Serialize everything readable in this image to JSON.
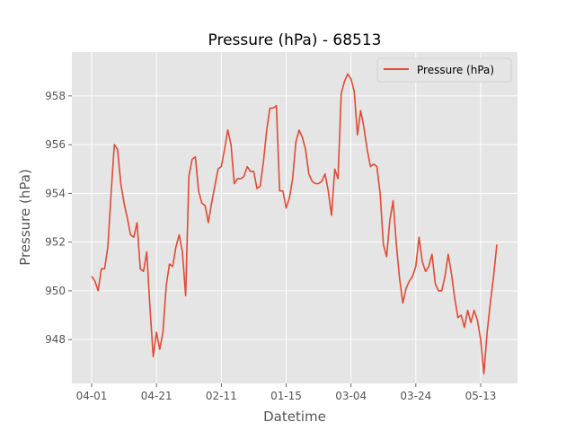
{
  "chart_data": {
    "type": "line",
    "title": "Pressure (hPa) - 68513",
    "xlabel": "Datetime",
    "ylabel": "Pressure (hPa)",
    "x_tick_labels": [
      "04-01",
      "04-21",
      "02-11",
      "01-15",
      "03-04",
      "03-24",
      "05-13"
    ],
    "y_ticks": [
      948,
      950,
      952,
      954,
      956,
      958
    ],
    "ylim": [
      946.2,
      959.8
    ],
    "grid": true,
    "legend_position": "upper right",
    "series": [
      {
        "name": "Pressure (hPa)",
        "color": "#E24A33",
        "values": [
          950.6,
          950.4,
          950.0,
          950.9,
          950.9,
          951.8,
          954.0,
          956.0,
          955.8,
          954.4,
          953.6,
          953.0,
          952.3,
          952.2,
          952.8,
          950.9,
          950.8,
          951.6,
          949.3,
          947.3,
          948.3,
          947.6,
          948.3,
          950.2,
          951.1,
          951.0,
          951.8,
          952.3,
          951.6,
          949.8,
          954.7,
          955.4,
          955.5,
          954.1,
          953.6,
          953.5,
          952.8,
          953.6,
          954.3,
          955.0,
          955.1,
          955.8,
          956.6,
          956.0,
          954.4,
          954.6,
          954.6,
          954.7,
          955.1,
          954.9,
          954.9,
          954.2,
          954.3,
          955.3,
          956.6,
          957.5,
          957.5,
          957.6,
          954.1,
          954.1,
          953.4,
          953.8,
          954.6,
          956.1,
          956.6,
          956.3,
          955.8,
          954.8,
          954.5,
          954.4,
          954.4,
          954.5,
          954.8,
          954.1,
          953.1,
          955.0,
          954.6,
          958.1,
          958.6,
          958.9,
          958.7,
          958.2,
          956.4,
          957.4,
          956.7,
          955.8,
          955.1,
          955.2,
          955.1,
          954.0,
          951.9,
          951.4,
          952.9,
          953.7,
          951.9,
          950.5,
          949.5,
          950.1,
          950.4,
          950.6,
          951.0,
          952.2,
          951.2,
          950.8,
          951.0,
          951.5,
          950.3,
          950.0,
          950.0,
          950.6,
          951.5,
          950.7,
          949.7,
          948.9,
          949.0,
          948.5,
          949.2,
          948.7,
          949.2,
          948.8,
          948.0,
          946.6,
          948.3,
          949.5,
          950.6,
          951.9
        ]
      }
    ]
  }
}
